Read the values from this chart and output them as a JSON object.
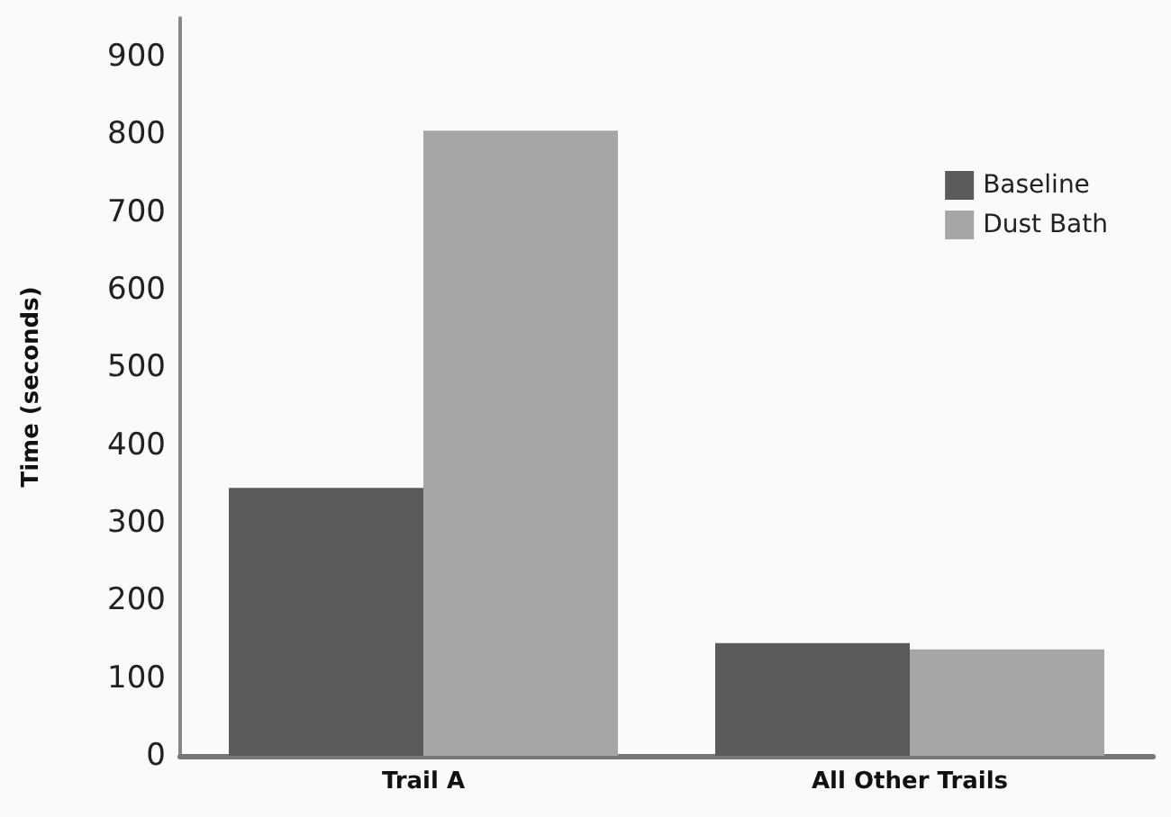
{
  "chart_data": {
    "type": "bar",
    "ylabel": "Time (seconds)",
    "categories": [
      "Trail A",
      "All Other Trails"
    ],
    "series": [
      {
        "name": "Baseline",
        "color": "#5a5a5a",
        "values": [
          345,
          145
        ]
      },
      {
        "name": "Dust Bath",
        "color": "#a6a6a6",
        "values": [
          805,
          137
        ]
      }
    ],
    "ylim": [
      0,
      950
    ],
    "yticks": [
      0,
      100,
      200,
      300,
      400,
      500,
      600,
      700,
      800,
      900
    ],
    "grid": false,
    "legend": "top right"
  }
}
